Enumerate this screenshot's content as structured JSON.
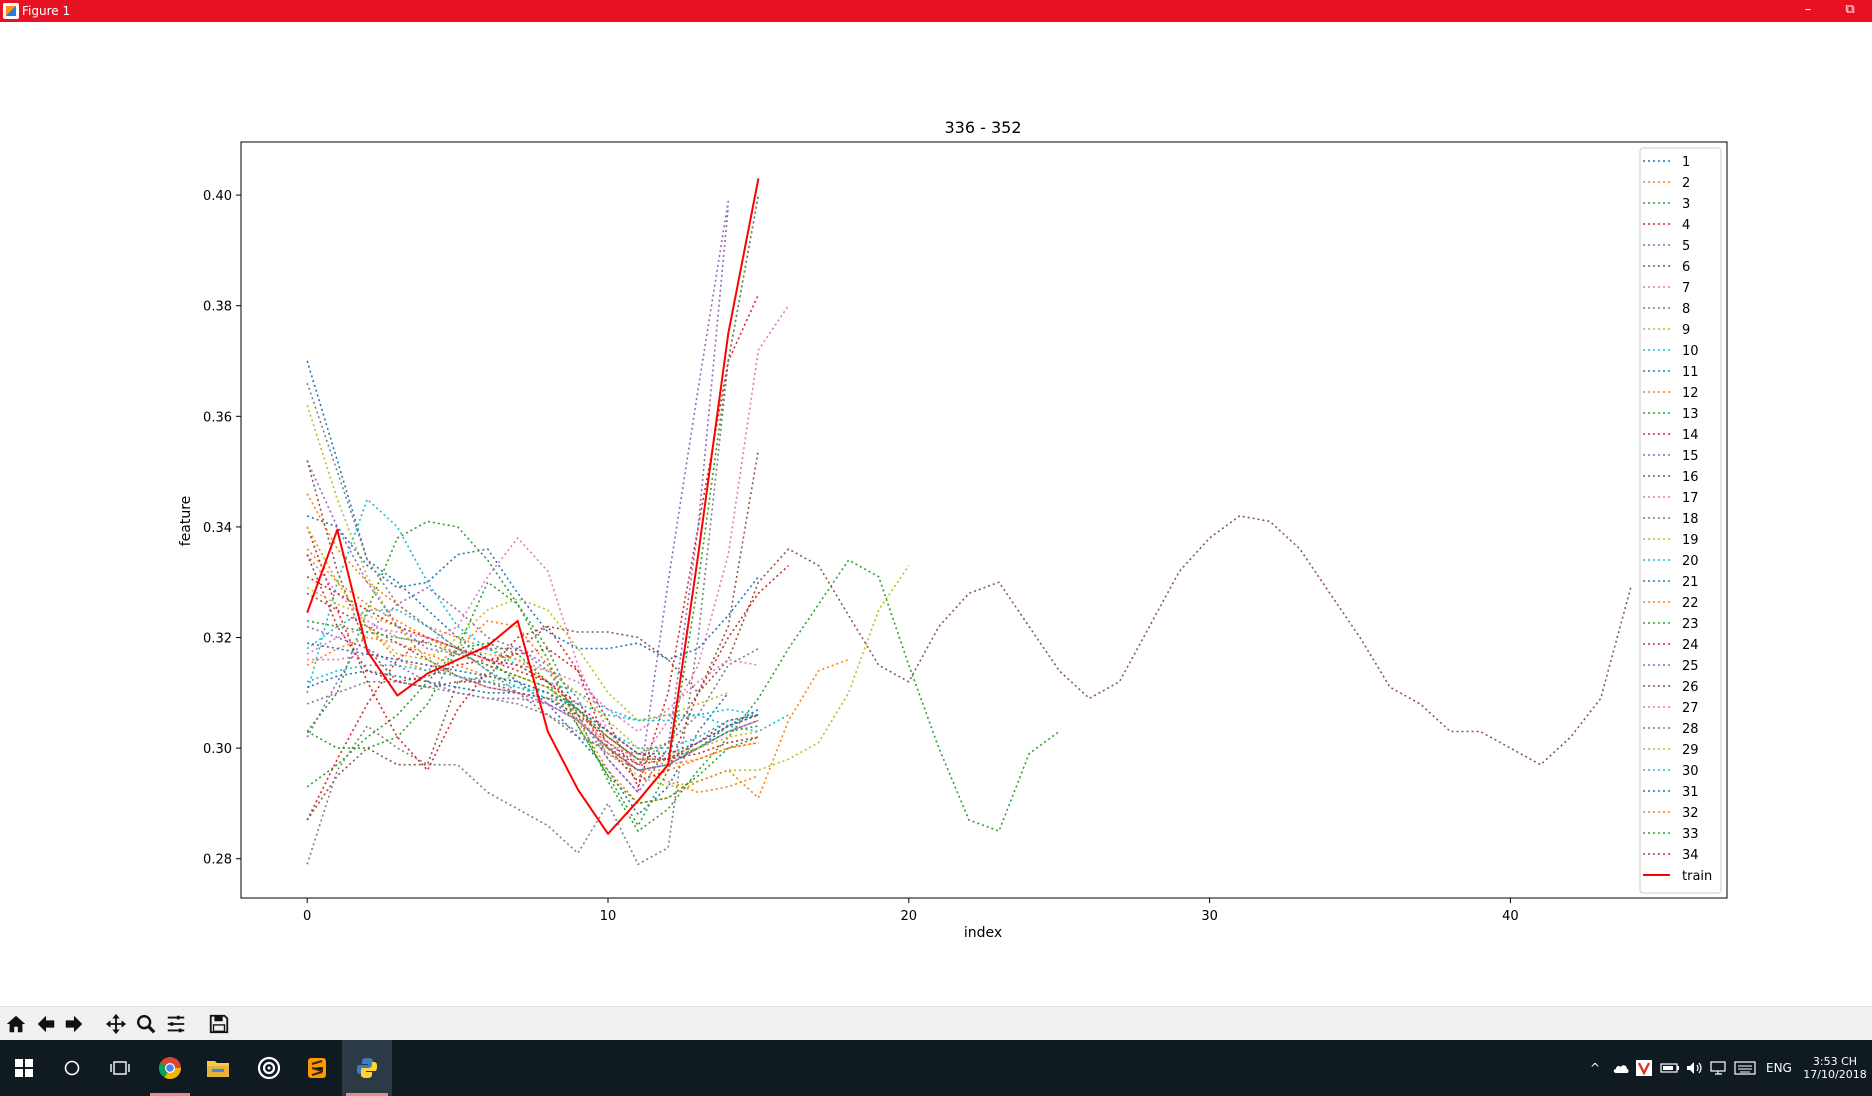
{
  "window": {
    "title": "Figure 1",
    "minimize": "–",
    "restore": "⧉"
  },
  "toolbar": {
    "buttons": [
      "home-icon",
      "back-icon",
      "forward-icon",
      "pan-icon",
      "zoom-icon",
      "configure-icon",
      "save-icon"
    ]
  },
  "taskbar": {
    "apps": [
      "start-icon",
      "search-icon",
      "task-view-icon",
      "chrome-icon",
      "file-explorer-icon",
      "app-circle-icon",
      "sublime-text-icon",
      "python-icon"
    ],
    "language": "ENG",
    "time": "3:53 CH",
    "date": "17/10/2018"
  },
  "chart_data": {
    "type": "line",
    "title": "336 - 352",
    "xlabel": "index",
    "ylabel": "feature",
    "xlim": [
      -2.2,
      47.2
    ],
    "ylim": [
      0.2729,
      0.4096
    ],
    "xticks": [
      0,
      10,
      20,
      30,
      40
    ],
    "yticks": [
      0.28,
      0.3,
      0.32,
      0.34,
      0.36,
      0.38,
      0.4
    ],
    "xtick_labels": [
      "0",
      "10",
      "20",
      "30",
      "40"
    ],
    "ytick_labels": [
      "0.28",
      "0.30",
      "0.32",
      "0.34",
      "0.36",
      "0.38",
      "0.40"
    ],
    "grid": false,
    "legend": "upper right",
    "series": [
      {
        "name": "1",
        "color": "#1f77b4",
        "style": "dotted",
        "y": [
          0.37,
          0.352,
          0.334,
          0.33,
          0.325,
          0.32,
          0.316,
          0.312,
          0.308,
          0.302,
          0.296,
          0.288,
          0.293,
          0.303,
          0.31
        ]
      },
      {
        "name": "2",
        "color": "#ff7f0e",
        "style": "dotted",
        "y": [
          0.346,
          0.336,
          0.33,
          0.326,
          0.322,
          0.32,
          0.318,
          0.316,
          0.312,
          0.307,
          0.3,
          0.296,
          0.294,
          0.292,
          0.293,
          0.295
        ]
      },
      {
        "name": "3",
        "color": "#2ca02c",
        "style": "dotted",
        "y": [
          0.293,
          0.297,
          0.302,
          0.306,
          0.312,
          0.318,
          0.319,
          0.317,
          0.312,
          0.304,
          0.295,
          0.286,
          0.296,
          0.33,
          0.37,
          0.4
        ]
      },
      {
        "name": "4",
        "color": "#d62728",
        "style": "dotted",
        "y": [
          0.287,
          0.298,
          0.308,
          0.316,
          0.32,
          0.318,
          0.316,
          0.317,
          0.318,
          0.314,
          0.305,
          0.293,
          0.31,
          0.34,
          0.37,
          0.382
        ]
      },
      {
        "name": "5",
        "color": "#9467bd",
        "style": "dotted",
        "y": [
          0.302,
          0.312,
          0.321,
          0.326,
          0.329,
          0.325,
          0.32,
          0.318,
          0.315,
          0.309,
          0.298,
          0.292,
          0.33,
          0.365,
          0.399
        ]
      },
      {
        "name": "6",
        "color": "#8c564b",
        "style": "dotted",
        "y": [
          0.287,
          0.295,
          0.3,
          0.297,
          0.297,
          0.312,
          0.313,
          0.318,
          0.322,
          0.321,
          0.321,
          0.32,
          0.316,
          0.31,
          0.316,
          0.33,
          0.336,
          0.333,
          0.324,
          0.315,
          0.312,
          0.322,
          0.328,
          0.33,
          0.322,
          0.314,
          0.309,
          0.312,
          0.322,
          0.332,
          0.338,
          0.342,
          0.341,
          0.336,
          0.328,
          0.32,
          0.311,
          0.308,
          0.303,
          0.303,
          0.3,
          0.297,
          0.302,
          0.309,
          0.329
        ]
      },
      {
        "name": "7",
        "color": "#e377c2",
        "style": "dotted",
        "y": [
          0.335,
          0.328,
          0.323,
          0.32,
          0.319,
          0.322,
          0.331,
          0.338,
          0.332,
          0.315,
          0.303,
          0.297,
          0.305,
          0.315,
          0.335,
          0.372,
          0.38
        ]
      },
      {
        "name": "8",
        "color": "#7f7f7f",
        "style": "dotted",
        "y": [
          0.279,
          0.296,
          0.304,
          0.3,
          0.297,
          0.297,
          0.292,
          0.289,
          0.286,
          0.281,
          0.29,
          0.279,
          0.282,
          0.32,
          0.37,
          0.4
        ]
      },
      {
        "name": "9",
        "color": "#bcbd22",
        "style": "dotted",
        "y": [
          0.362,
          0.345,
          0.331,
          0.322,
          0.316,
          0.313,
          0.312,
          0.313,
          0.311,
          0.306,
          0.299,
          0.295,
          0.293,
          0.294,
          0.296,
          0.296,
          0.298,
          0.301,
          0.31,
          0.325,
          0.333
        ]
      },
      {
        "name": "10",
        "color": "#17becf",
        "style": "dotted",
        "y": [
          0.31,
          0.33,
          0.345,
          0.34,
          0.33,
          0.322,
          0.318,
          0.315,
          0.312,
          0.31,
          0.307,
          0.305,
          0.306,
          0.306,
          0.304,
          0.303,
          0.306
        ]
      },
      {
        "name": "11",
        "color": "#1f77b4",
        "style": "dotted",
        "y": [
          0.342,
          0.34,
          0.333,
          0.329,
          0.33,
          0.335,
          0.336,
          0.328,
          0.321,
          0.318,
          0.318,
          0.319,
          0.316,
          0.318,
          0.324,
          0.331
        ]
      },
      {
        "name": "12",
        "color": "#ff7f0e",
        "style": "dotted",
        "y": [
          0.34,
          0.33,
          0.322,
          0.316,
          0.314,
          0.318,
          0.323,
          0.322,
          0.315,
          0.305,
          0.296,
          0.29,
          0.291,
          0.294,
          0.296,
          0.291,
          0.305,
          0.314,
          0.316
        ]
      },
      {
        "name": "13",
        "color": "#2ca02c",
        "style": "dotted",
        "y": [
          0.303,
          0.3,
          0.3,
          0.302,
          0.308,
          0.318,
          0.33,
          0.326,
          0.318,
          0.306,
          0.294,
          0.285,
          0.289,
          0.296,
          0.302,
          0.309,
          0.318,
          0.326,
          0.334,
          0.331,
          0.315,
          0.3,
          0.287,
          0.285,
          0.299,
          0.303
        ]
      },
      {
        "name": "14",
        "color": "#d62728",
        "style": "dotted",
        "y": [
          0.34,
          0.325,
          0.312,
          0.302,
          0.296,
          0.307,
          0.314,
          0.32,
          0.322,
          0.314,
          0.3,
          0.294,
          0.296,
          0.31,
          0.32,
          0.328,
          0.333
        ]
      },
      {
        "name": "15",
        "color": "#9467bd",
        "style": "dotted",
        "y": [
          0.352,
          0.34,
          0.33,
          0.322,
          0.318,
          0.317,
          0.318,
          0.318,
          0.314,
          0.306,
          0.298,
          0.292,
          0.3,
          0.34,
          0.398
        ]
      },
      {
        "name": "16",
        "color": "#8c564b",
        "style": "dotted",
        "y": [
          0.352,
          0.332,
          0.318,
          0.312,
          0.311,
          0.312,
          0.312,
          0.31,
          0.308,
          0.305,
          0.3,
          0.297,
          0.301,
          0.31,
          0.322,
          0.354
        ]
      },
      {
        "name": "17",
        "color": "#e377c2",
        "style": "dotted",
        "y": [
          0.317,
          0.32,
          0.322,
          0.321,
          0.32,
          0.318,
          0.316,
          0.315,
          0.314,
          0.312,
          0.307,
          0.303,
          0.307,
          0.312,
          0.316,
          0.315
        ]
      },
      {
        "name": "18",
        "color": "#7f7f7f",
        "style": "dotted",
        "y": [
          0.366,
          0.35,
          0.334,
          0.326,
          0.322,
          0.318,
          0.314,
          0.31,
          0.306,
          0.302,
          0.3,
          0.299,
          0.301,
          0.306,
          0.315,
          0.318
        ]
      },
      {
        "name": "19",
        "color": "#bcbd22",
        "style": "dotted",
        "y": [
          0.34,
          0.33,
          0.322,
          0.317,
          0.316,
          0.32,
          0.325,
          0.327,
          0.325,
          0.318,
          0.31,
          0.305,
          0.306,
          0.308,
          0.31
        ]
      },
      {
        "name": "20",
        "color": "#17becf",
        "style": "dotted",
        "y": [
          0.318,
          0.322,
          0.325,
          0.325,
          0.322,
          0.318,
          0.314,
          0.311,
          0.309,
          0.308,
          0.306,
          0.305,
          0.305,
          0.306,
          0.307,
          0.306
        ]
      },
      {
        "name": "21",
        "color": "#1f77b4",
        "style": "dotted",
        "y": [
          0.311,
          0.313,
          0.314,
          0.313,
          0.312,
          0.311,
          0.31,
          0.31,
          0.309,
          0.305,
          0.3,
          0.296,
          0.297,
          0.3,
          0.304,
          0.307
        ]
      },
      {
        "name": "22",
        "color": "#ff7f0e",
        "style": "dotted",
        "y": [
          0.315,
          0.318,
          0.32,
          0.319,
          0.317,
          0.315,
          0.313,
          0.312,
          0.31,
          0.305,
          0.3,
          0.296,
          0.296,
          0.298,
          0.3,
          0.301
        ]
      },
      {
        "name": "23",
        "color": "#2ca02c",
        "style": "dotted",
        "y": [
          0.303,
          0.31,
          0.325,
          0.338,
          0.341,
          0.34,
          0.334,
          0.326,
          0.316,
          0.304,
          0.295,
          0.29,
          0.291,
          0.295,
          0.3,
          0.302
        ]
      },
      {
        "name": "24",
        "color": "#d62728",
        "style": "dotted",
        "y": [
          0.335,
          0.322,
          0.314,
          0.312,
          0.313,
          0.315,
          0.316,
          0.315,
          0.312,
          0.307,
          0.301,
          0.297,
          0.298,
          0.301,
          0.305,
          0.306
        ]
      },
      {
        "name": "25",
        "color": "#9467bd",
        "style": "dotted",
        "y": [
          0.322,
          0.32,
          0.318,
          0.315,
          0.312,
          0.31,
          0.309,
          0.309,
          0.308,
          0.305,
          0.3,
          0.296,
          0.297,
          0.3,
          0.303,
          0.305
        ]
      },
      {
        "name": "26",
        "color": "#8c564b",
        "style": "dotted",
        "y": [
          0.328,
          0.325,
          0.322,
          0.319,
          0.316,
          0.313,
          0.311,
          0.31,
          0.309,
          0.306,
          0.302,
          0.298,
          0.298,
          0.301,
          0.304,
          0.306
        ]
      },
      {
        "name": "27",
        "color": "#e377c2",
        "style": "dotted",
        "y": [
          0.316,
          0.316,
          0.317,
          0.316,
          0.315,
          0.313,
          0.311,
          0.31,
          0.308,
          0.305,
          0.301,
          0.298,
          0.298,
          0.3,
          0.303,
          0.305
        ]
      },
      {
        "name": "28",
        "color": "#7f7f7f",
        "style": "dotted",
        "y": [
          0.308,
          0.31,
          0.312,
          0.312,
          0.311,
          0.31,
          0.309,
          0.308,
          0.306,
          0.303,
          0.299,
          0.296,
          0.297,
          0.3,
          0.303,
          0.305
        ]
      },
      {
        "name": "29",
        "color": "#bcbd22",
        "style": "dotted",
        "y": [
          0.329,
          0.326,
          0.324,
          0.322,
          0.32,
          0.318,
          0.317,
          0.316,
          0.314,
          0.31,
          0.305,
          0.3,
          0.299,
          0.3,
          0.302,
          0.303
        ]
      },
      {
        "name": "30",
        "color": "#17becf",
        "style": "dotted",
        "y": [
          0.312,
          0.314,
          0.315,
          0.315,
          0.314,
          0.313,
          0.312,
          0.311,
          0.31,
          0.307,
          0.303,
          0.3,
          0.3,
          0.302,
          0.305,
          0.306
        ]
      },
      {
        "name": "31",
        "color": "#1f77b4",
        "style": "dotted",
        "y": [
          0.319,
          0.318,
          0.317,
          0.316,
          0.315,
          0.314,
          0.313,
          0.312,
          0.31,
          0.307,
          0.303,
          0.299,
          0.299,
          0.301,
          0.304,
          0.306
        ]
      },
      {
        "name": "32",
        "color": "#ff7f0e",
        "style": "dotted",
        "y": [
          0.336,
          0.33,
          0.326,
          0.323,
          0.32,
          0.317,
          0.315,
          0.313,
          0.311,
          0.307,
          0.302,
          0.298,
          0.297,
          0.298,
          0.3,
          0.301
        ]
      },
      {
        "name": "33",
        "color": "#2ca02c",
        "style": "dotted",
        "y": [
          0.323,
          0.322,
          0.321,
          0.32,
          0.319,
          0.317,
          0.315,
          0.313,
          0.311,
          0.307,
          0.302,
          0.298,
          0.298,
          0.3,
          0.303,
          0.304
        ]
      },
      {
        "name": "34",
        "color": "#d62728",
        "style": "dotted",
        "y": [
          0.331,
          0.328,
          0.325,
          0.322,
          0.32,
          0.318,
          0.316,
          0.314,
          0.312,
          0.308,
          0.303,
          0.299,
          0.298,
          0.299,
          0.301,
          0.302
        ]
      },
      {
        "name": "train",
        "color": "#ff0000",
        "style": "solid",
        "y": [
          0.3245,
          0.3395,
          0.3175,
          0.3095,
          0.3135,
          0.316,
          0.3185,
          0.323,
          0.303,
          0.2925,
          0.2845,
          0.2905,
          0.297,
          0.335,
          0.375,
          0.403
        ]
      }
    ]
  }
}
